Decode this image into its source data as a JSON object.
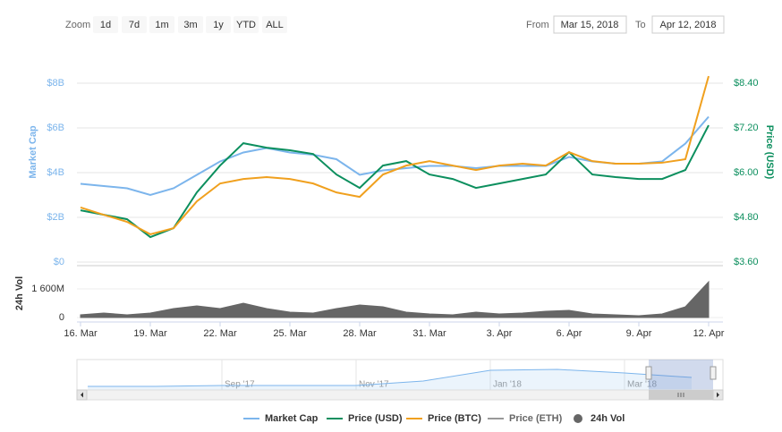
{
  "toolbar": {
    "zoom_label": "Zoom",
    "buttons": [
      "1d",
      "7d",
      "1m",
      "3m",
      "1y",
      "YTD",
      "ALL"
    ],
    "from_label": "From",
    "from": "Mar 15, 2018",
    "to_label": "To",
    "to": "Apr 12, 2018"
  },
  "chart_data": {
    "type": "line",
    "categories": [
      "16. Mar",
      null,
      null,
      "19. Mar",
      null,
      null,
      "22. Mar",
      null,
      null,
      "25. Mar",
      null,
      null,
      "28. Mar",
      null,
      null,
      "31. Mar",
      null,
      null,
      "3. Apr",
      null,
      null,
      "6. Apr",
      null,
      null,
      "9. Apr",
      null,
      null,
      "12. Apr"
    ],
    "ylabel": "Market Cap",
    "ylim": [
      0,
      10000000000
    ],
    "yticks": [
      {
        "value": 0,
        "label": "$0"
      },
      {
        "value": 2000000000,
        "label": "$2B"
      },
      {
        "value": 4000000000,
        "label": "$4B"
      },
      {
        "value": 6000000000,
        "label": "$6B"
      },
      {
        "value": 8000000000,
        "label": "$8B"
      }
    ],
    "y2label": "Price (USD)",
    "y2lim": [
      3.6,
      9.6
    ],
    "y2ticks": [
      {
        "value": 3.6,
        "label": "$3.60"
      },
      {
        "value": 4.8,
        "label": "$4.80"
      },
      {
        "value": 6.0,
        "label": "$6.00"
      },
      {
        "value": 7.2,
        "label": "$7.20"
      },
      {
        "value": 8.4,
        "label": "$8.40"
      }
    ],
    "y3lim": [
      0.0004,
      0.0011
    ],
    "vol_label": "24h Vol",
    "vol_ylim": [
      0,
      3000000000
    ],
    "vol_yticks": [
      0,
      {
        "value": 1600000000,
        "label": "1 600M"
      }
    ],
    "grid": true,
    "legend": "bottom",
    "series": [
      {
        "name": "Market Cap",
        "color": "#7cb5ec",
        "values": [
          3500000000,
          3400000000,
          3300000000,
          3000000000,
          3300000000,
          3900000000,
          4500000000,
          4900000000,
          5100000000,
          4900000000,
          4800000000,
          4600000000,
          3900000000,
          4100000000,
          4200000000,
          4300000000,
          4300000000,
          4200000000,
          4300000000,
          4300000000,
          4300000000,
          4700000000,
          4500000000,
          4400000000,
          4400000000,
          4500000000,
          5300000000,
          6500000000
        ]
      },
      {
        "name": "Price (USD)",
        "color": "#0c8f5e",
        "axis": "y2",
        "values": [
          4.99,
          4.87,
          4.75,
          4.27,
          4.51,
          5.47,
          6.19,
          6.79,
          6.67,
          6.6,
          6.5,
          5.95,
          5.59,
          6.19,
          6.31,
          5.95,
          5.83,
          5.59,
          5.71,
          5.83,
          5.95,
          6.55,
          5.95,
          5.88,
          5.83,
          5.83,
          6.07,
          7.27
        ]
      },
      {
        "name": "Price (BTC)",
        "color": "#f0a01e",
        "axis": "y3",
        "values": [
          0.000571,
          0.000548,
          0.000526,
          0.000487,
          0.000506,
          0.00059,
          0.000646,
          0.00066,
          0.000666,
          0.00066,
          0.000646,
          0.000618,
          0.000604,
          0.000674,
          0.000702,
          0.000716,
          0.000702,
          0.000688,
          0.000702,
          0.000708,
          0.000702,
          0.000744,
          0.000716,
          0.000708,
          0.000708,
          0.000711,
          0.000722,
          0.000982
        ]
      },
      {
        "name": "Price (ETH)",
        "color": "#999999",
        "visible": false
      },
      {
        "name": "24h Vol",
        "color": "#666666",
        "axis": "vol",
        "values": [
          150000000,
          250000000,
          150000000,
          250000000,
          500000000,
          650000000,
          500000000,
          800000000,
          500000000,
          300000000,
          250000000,
          500000000,
          700000000,
          600000000,
          300000000,
          200000000,
          150000000,
          300000000,
          200000000,
          250000000,
          350000000,
          400000000,
          200000000,
          150000000,
          100000000,
          200000000,
          600000000,
          2000000000
        ]
      }
    ],
    "navigator": {
      "type": "area",
      "color": "#7cb5ec",
      "categories": [
        null,
        null,
        "Sep '17",
        null,
        "Nov '17",
        null,
        "Jan '18",
        null,
        "Mar '18",
        null
      ],
      "values": [
        2400000000,
        2400000000,
        2700000000,
        2700000000,
        2700000000,
        4200000000,
        7800000000,
        8100000000,
        6900000000,
        5400000000
      ],
      "ylim": [
        0,
        12000000000
      ]
    }
  }
}
